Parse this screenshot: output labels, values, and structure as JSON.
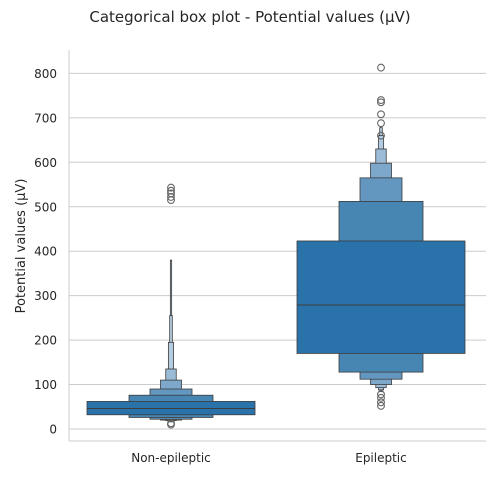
{
  "chart_data": {
    "type": "boxen",
    "title": "Categorical box plot - Potential values (μV)",
    "xlabel": "",
    "ylabel": "Potential values (μV)",
    "ylim": [
      -25,
      850
    ],
    "yticks": [
      0,
      100,
      200,
      300,
      400,
      500,
      600,
      700,
      800
    ],
    "grid": "horizontal",
    "categories": [
      "Non-epileptic",
      "Epileptic"
    ],
    "colors": {
      "axis": "#cccccc",
      "grid": "#cccccc",
      "edge": "#3d3d3d",
      "outlier": "#666666",
      "box_levels": [
        "#2a72aa",
        "#4785b3",
        "#6397c0",
        "#7ea8cb",
        "#9bbbd6",
        "#b3cce1"
      ]
    },
    "groups": [
      {
        "category": "Non-epileptic",
        "median": 46,
        "boxes": [
          {
            "low": 32,
            "high": 62
          },
          {
            "low": 26,
            "high": 76
          },
          {
            "low": 22,
            "high": 90
          },
          {
            "low": 20,
            "high": 110
          },
          {
            "low": 19,
            "high": 135
          },
          {
            "low": 18,
            "high": 195
          },
          {
            "low": 17,
            "high": 255
          },
          {
            "low": 16,
            "high": 380
          }
        ],
        "outliers": [
          10,
          13,
          515,
          522,
          530,
          536,
          543
        ]
      },
      {
        "category": "Epileptic",
        "median": 279,
        "boxes": [
          {
            "low": 170,
            "high": 423
          },
          {
            "low": 128,
            "high": 512
          },
          {
            "low": 112,
            "high": 565
          },
          {
            "low": 100,
            "high": 598
          },
          {
            "low": 93,
            "high": 630
          },
          {
            "low": 88,
            "high": 660
          },
          {
            "low": 84,
            "high": 678
          }
        ],
        "outliers": [
          52,
          60,
          70,
          78,
          660,
          688,
          708,
          735,
          740,
          813
        ]
      }
    ]
  }
}
